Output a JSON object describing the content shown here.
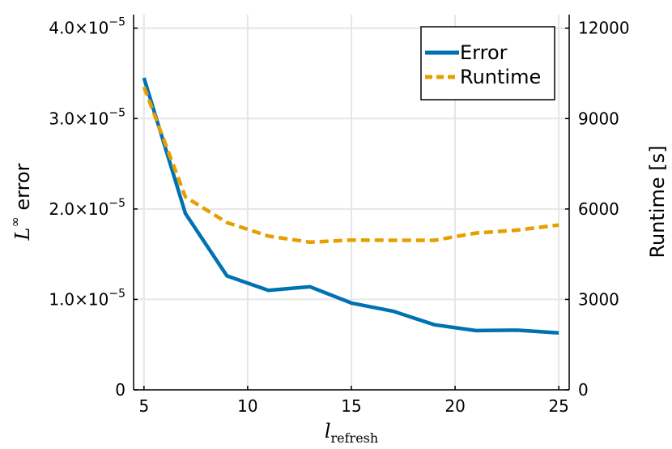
{
  "chart_data": {
    "type": "line",
    "x": [
      5,
      7,
      9,
      11,
      13,
      15,
      17,
      19,
      21,
      23,
      25
    ],
    "series": [
      {
        "name": "Error",
        "axis": "left",
        "color": "#0072b2",
        "style": "solid",
        "values": [
          3.45e-05,
          1.95e-05,
          1.26e-05,
          1.1e-05,
          1.14e-05,
          9.6e-06,
          8.7e-06,
          7.2e-06,
          6.55e-06,
          6.6e-06,
          6.3e-06
        ]
      },
      {
        "name": "Runtime",
        "axis": "right",
        "color": "#e69f00",
        "style": "dashed",
        "values": [
          10050,
          6400,
          5550,
          5100,
          4900,
          4970,
          4960,
          4960,
          5200,
          5300,
          5470
        ]
      }
    ],
    "xlabel": {
      "base": "l",
      "sub": "refresh"
    },
    "ylabel_left": {
      "base": "L",
      "sup": "∞",
      "text": " error"
    },
    "ylabel_right": "Runtime [s]",
    "xlim": [
      4.5,
      25.5
    ],
    "ylim_left": [
      0,
      4.15e-05
    ],
    "ylim_right": [
      0,
      12450
    ],
    "xticks": [
      {
        "v": 5,
        "label": "5"
      },
      {
        "v": 10,
        "label": "10"
      },
      {
        "v": 15,
        "label": "15"
      },
      {
        "v": 20,
        "label": "20"
      },
      {
        "v": 25,
        "label": "25"
      }
    ],
    "yticks_left": [
      {
        "v": 0,
        "label": "0",
        "sup": ""
      },
      {
        "v": 1e-05,
        "label": "1.0×10",
        "sup": "−5"
      },
      {
        "v": 2e-05,
        "label": "2.0×10",
        "sup": "−5"
      },
      {
        "v": 3e-05,
        "label": "3.0×10",
        "sup": "−5"
      },
      {
        "v": 4e-05,
        "label": "4.0×10",
        "sup": "−5"
      }
    ],
    "yticks_right": [
      {
        "v": 0,
        "label": "0"
      },
      {
        "v": 3000,
        "label": "3000"
      },
      {
        "v": 6000,
        "label": "6000"
      },
      {
        "v": 9000,
        "label": "9000"
      },
      {
        "v": 12000,
        "label": "12000"
      }
    ],
    "grid": true,
    "legend_position": "top-right"
  }
}
